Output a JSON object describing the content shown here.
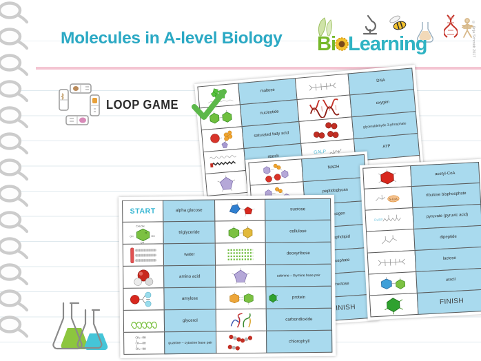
{
  "page": {
    "title": "Molecules in A-level Biology",
    "copyright": "© Anja Schmidt 2017"
  },
  "logo": {
    "bio_prefix": "Bi",
    "o_glyph": "sunflower",
    "learning": "Learning",
    "green": "#76b82a",
    "teal": "#2fb3c3"
  },
  "loop_game": {
    "label": "LOOP GAME",
    "icon": "loop-game-cards",
    "check_icon": "checkmark",
    "check_color": "#5cb84a"
  },
  "colors": {
    "title_teal": "#2ba9c4",
    "card_label_blue": "#a9daee",
    "pink_rule": "#f4c5d2",
    "ruled_line": "#dfe9ee"
  },
  "sheets": {
    "back": {
      "rows": [
        [
          {
            "icon": "green-cluster"
          },
          {
            "t": "maltose"
          },
          {
            "icon": "skeletal-chain"
          },
          {
            "t": "DNA"
          }
        ],
        [
          {
            "icon": "two-green-hexagons"
          },
          {
            "t": "nucleotide"
          },
          {
            "icon": "dna-helix"
          },
          {
            "t": "oxygen"
          }
        ],
        [
          {
            "icon": "red-orange-cluster"
          },
          {
            "t": "saturated fatty acid"
          },
          {
            "icon": "red-spheres"
          },
          {
            "t": "glyceraldehyde 3-phosphate",
            "cls": "tiny"
          }
        ],
        [
          {
            "icon": "wavy-chains"
          },
          {
            "t": "starch"
          },
          {
            "icon": "galp-skeletal"
          },
          {
            "t": "ATP"
          }
        ],
        [
          {
            "icon": "purple-pentagon"
          },
          {},
          {
            "icon": "red-cluster-small"
          },
          {}
        ]
      ]
    },
    "middle_left": {
      "rows": [
        [
          {
            "icon": "molecule-cluster"
          },
          {
            "t": "NADH"
          }
        ],
        [
          {
            "icon": "molecule-cluster"
          },
          {
            "t": "peptidoglycan"
          }
        ],
        [
          {},
          {
            "t": "glycogen"
          }
        ],
        [
          {},
          {
            "t": "phospholipid"
          }
        ],
        [
          {},
          {
            "t": "phosphate"
          }
        ],
        [
          {},
          {
            "t": "fructose"
          }
        ],
        [
          {},
          {
            "t": "FINISH",
            "big": true
          }
        ]
      ]
    },
    "middle_right": {
      "rows": [
        [
          {
            "icon": "red-hexagon"
          },
          {
            "t": "acetyl-CoA"
          }
        ],
        [
          {
            "icon": "s-coa-skeletal"
          },
          {
            "t": "ribulose bisphosphate"
          }
        ],
        [
          {
            "icon": "rubp-skeletal"
          },
          {
            "t": "pyruvate (pyruvic acid)"
          }
        ],
        [
          {
            "icon": "skeletal-branch"
          },
          {
            "t": "dipeptide"
          }
        ],
        [
          {
            "icon": "skeletal-chain"
          },
          {
            "t": "lactose"
          }
        ],
        [
          {
            "icon": "blue-green-hexagons"
          },
          {
            "t": "uracil"
          }
        ],
        [
          {
            "icon": "green-hexagon"
          },
          {
            "t": "FINISH",
            "big": true
          }
        ]
      ]
    },
    "front": {
      "rows": [
        [
          {
            "t": "START",
            "big": true,
            "white": true,
            "cls": "start"
          },
          {
            "t": "alpha glucose"
          },
          {
            "icon": "sucrose-pair"
          },
          {
            "t": "sucrose"
          }
        ],
        [
          {
            "icon": "alpha-glucose"
          },
          {
            "t": "triglyceride"
          },
          {
            "icon": "green-yellow-hexagons"
          },
          {
            "t": "cellulose"
          }
        ],
        [
          {
            "icon": "triglyceride-diagram"
          },
          {
            "t": "water"
          },
          {
            "icon": "green-dot-grid"
          },
          {
            "t": "deoxyribose"
          }
        ],
        [
          {
            "icon": "water-3d"
          },
          {
            "t": "amino acid"
          },
          {
            "icon": "purple-pentagon"
          },
          {
            "t": "adenine – thymine base pair",
            "cls": "tiny"
          }
        ],
        [
          {
            "icon": "amino-acid"
          },
          {
            "t": "amylose"
          },
          {
            "icon": "orange-green-pair"
          },
          {
            "t": "protein",
            "icon2": "green-hexagon-bonds"
          }
        ],
        [
          {
            "icon": "amylose-spiral"
          },
          {
            "t": "glycerol"
          },
          {
            "icon": "protein-ribbon"
          },
          {
            "t": "carbondioxide"
          }
        ],
        [
          {
            "icon": "glycerol-formula"
          },
          {
            "t": "guanine – cytosine base pair",
            "cls": "tiny"
          },
          {
            "icon": "co2-molecules"
          },
          {
            "t": "chlorophyll"
          }
        ]
      ]
    }
  }
}
